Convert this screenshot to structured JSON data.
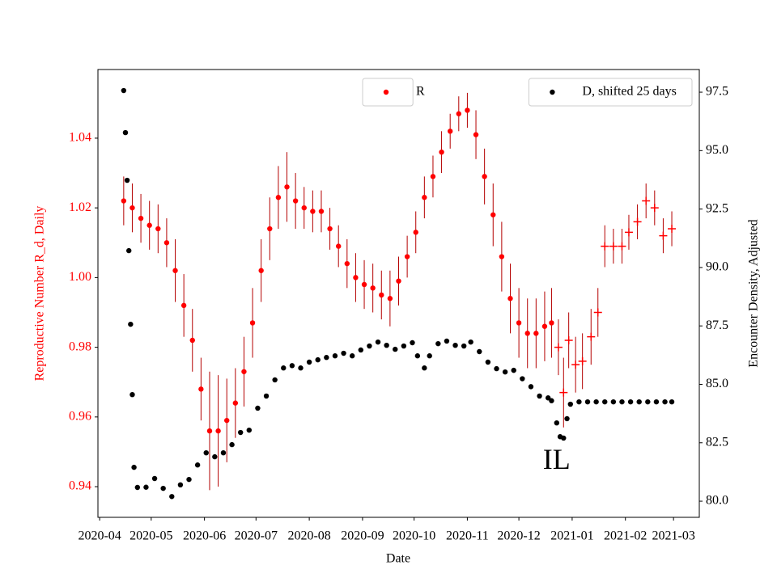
{
  "chart_data": {
    "type": "scatter",
    "x_label": "Date",
    "y_label": "Reproductive Number R_d, Daily",
    "y2_label": "Encounter Density, Adjusted",
    "xlim": [
      "2020-03-31",
      "2021-03-16"
    ],
    "xticks": [
      {
        "value": "2020-04-01",
        "label": "2020-04"
      },
      {
        "value": "2020-05-01",
        "label": "2020-05"
      },
      {
        "value": "2020-06-01",
        "label": "2020-06"
      },
      {
        "value": "2020-07-01",
        "label": "2020-07"
      },
      {
        "value": "2020-08-01",
        "label": "2020-08"
      },
      {
        "value": "2020-09-01",
        "label": "2020-09"
      },
      {
        "value": "2020-10-01",
        "label": "2020-10"
      },
      {
        "value": "2020-11-01",
        "label": "2020-11"
      },
      {
        "value": "2020-12-01",
        "label": "2020-12"
      },
      {
        "value": "2021-01-01",
        "label": "2021-01"
      },
      {
        "value": "2021-02-01",
        "label": "2021-02"
      },
      {
        "value": "2021-03-01",
        "label": "2021-03"
      }
    ],
    "ylim": [
      0.9312,
      1.0597
    ],
    "yticks": [
      0.94,
      0.96,
      0.98,
      {
        "value": 1,
        "label": "1.00"
      },
      1.02,
      1.04
    ],
    "y_color": "#ff0000",
    "y2lim": [
      79.31,
      98.47
    ],
    "y2ticks": [
      {
        "value": 80,
        "label": "80.0"
      },
      82.5,
      {
        "value": 85,
        "label": "85.0"
      },
      87.5,
      {
        "value": 90,
        "label": "90.0"
      },
      92.5,
      {
        "value": 95,
        "label": "95.0"
      },
      97.5
    ],
    "annotations": [
      {
        "text": "IL",
        "x": "2020-12-23",
        "y": 0.947
      }
    ],
    "series": [
      {
        "name": "R",
        "color": "#ff0000",
        "error_color": "#b40000",
        "marker": "o",
        "legend": "upper center",
        "x": [
          "2020-04-15",
          "2020-04-20",
          "2020-04-25",
          "2020-04-30",
          "2020-05-05",
          "2020-05-10",
          "2020-05-15",
          "2020-05-20",
          "2020-05-25",
          "2020-05-30",
          "2020-06-04",
          "2020-06-09",
          "2020-06-14",
          "2020-06-19",
          "2020-06-24",
          "2020-06-29",
          "2020-07-04",
          "2020-07-09",
          "2020-07-14",
          "2020-07-19",
          "2020-07-24",
          "2020-07-29",
          "2020-08-03",
          "2020-08-08",
          "2020-08-13",
          "2020-08-18",
          "2020-08-23",
          "2020-08-28",
          "2020-09-02",
          "2020-09-07",
          "2020-09-12",
          "2020-09-17",
          "2020-09-22",
          "2020-09-27",
          "2020-10-02",
          "2020-10-07",
          "2020-10-12",
          "2020-10-17",
          "2020-10-22",
          "2020-10-27",
          "2020-11-01",
          "2020-11-06",
          "2020-11-11",
          "2020-11-16",
          "2020-11-21",
          "2020-11-26",
          "2020-12-01",
          "2020-12-06",
          "2020-12-11",
          "2020-12-16",
          "2020-12-20"
        ],
        "values": [
          1.022,
          1.02,
          1.017,
          1.015,
          1.014,
          1.01,
          1.002,
          0.992,
          0.982,
          0.968,
          0.956,
          0.956,
          0.959,
          0.964,
          0.973,
          0.987,
          1.002,
          1.014,
          1.023,
          1.026,
          1.022,
          1.02,
          1.019,
          1.019,
          1.014,
          1.009,
          1.004,
          1.0,
          0.998,
          0.997,
          0.995,
          0.994,
          0.999,
          1.006,
          1.013,
          1.023,
          1.029,
          1.036,
          1.042,
          1.047,
          1.048,
          1.041,
          1.029,
          1.018,
          1.006,
          0.994,
          0.987,
          0.984,
          0.984,
          0.986,
          0.987
        ],
        "errors": [
          0.007,
          0.007,
          0.007,
          0.007,
          0.007,
          0.007,
          0.009,
          0.009,
          0.009,
          0.009,
          0.017,
          0.016,
          0.012,
          0.01,
          0.01,
          0.01,
          0.009,
          0.009,
          0.009,
          0.01,
          0.008,
          0.006,
          0.006,
          0.006,
          0.006,
          0.006,
          0.007,
          0.007,
          0.007,
          0.007,
          0.007,
          0.008,
          0.007,
          0.006,
          0.006,
          0.006,
          0.006,
          0.006,
          0.005,
          0.005,
          0.005,
          0.007,
          0.008,
          0.009,
          0.01,
          0.01,
          0.01,
          0.01,
          0.01,
          0.01,
          0.01
        ]
      },
      {
        "color": "#ff0000",
        "error_color": "#b40000",
        "marker": "+",
        "x": [
          "2020-12-24",
          "2020-12-27",
          "2020-12-30",
          "2021-01-03",
          "2021-01-07",
          "2021-01-12",
          "2021-01-16",
          "2021-01-20",
          "2021-01-25",
          "2021-01-30",
          "2021-02-03",
          "2021-02-08",
          "2021-02-13",
          "2021-02-18",
          "2021-02-23",
          "2021-02-28"
        ],
        "values": [
          0.98,
          0.967,
          0.982,
          0.975,
          0.976,
          0.983,
          0.99,
          1.009,
          1.009,
          1.009,
          1.013,
          1.016,
          1.022,
          1.02,
          1.012,
          1.014
        ],
        "errors": [
          0.008,
          0.01,
          0.008,
          0.008,
          0.008,
          0.008,
          0.007,
          0.006,
          0.005,
          0.005,
          0.005,
          0.005,
          0.005,
          0.005,
          0.005,
          0.005
        ]
      },
      {
        "name": "D, shifted 25 days",
        "color": "#000000",
        "marker": "o",
        "axis": "y2",
        "legend": "upper right",
        "x": [
          "2020-04-15",
          "2020-04-16",
          "2020-04-17",
          "2020-04-18",
          "2020-04-19",
          "2020-04-20",
          "2020-04-21",
          "2020-04-23",
          "2020-04-28",
          "2020-05-03",
          "2020-05-08",
          "2020-05-13",
          "2020-05-18",
          "2020-05-23",
          "2020-05-28",
          "2020-06-02",
          "2020-06-07",
          "2020-06-12",
          "2020-06-17",
          "2020-06-22",
          "2020-06-27",
          "2020-07-02",
          "2020-07-07",
          "2020-07-12",
          "2020-07-17",
          "2020-07-22",
          "2020-07-27",
          "2020-08-01",
          "2020-08-06",
          "2020-08-11",
          "2020-08-16",
          "2020-08-21",
          "2020-08-26",
          "2020-08-31",
          "2020-09-05",
          "2020-09-10",
          "2020-09-15",
          "2020-09-20",
          "2020-09-25",
          "2020-09-30",
          "2020-10-03",
          "2020-10-07",
          "2020-10-10",
          "2020-10-15",
          "2020-10-20",
          "2020-10-25",
          "2020-10-30",
          "2020-11-03",
          "2020-11-08",
          "2020-11-13",
          "2020-11-18",
          "2020-11-23",
          "2020-11-28",
          "2020-12-03",
          "2020-12-08",
          "2020-12-13",
          "2020-12-18",
          "2020-12-20",
          "2020-12-23",
          "2020-12-25",
          "2020-12-27",
          "2020-12-29",
          "2020-12-31",
          "2021-01-05",
          "2021-01-10",
          "2021-01-15",
          "2021-01-20",
          "2021-01-25",
          "2021-01-30",
          "2021-02-04",
          "2021-02-09",
          "2021-02-14",
          "2021-02-19",
          "2021-02-24",
          "2021-02-28"
        ],
        "values": [
          97.57,
          95.77,
          93.73,
          90.72,
          87.57,
          84.56,
          81.45,
          80.59,
          80.6,
          80.97,
          80.55,
          80.2,
          80.7,
          80.93,
          81.55,
          82.07,
          81.9,
          82.07,
          82.42,
          82.94,
          83.04,
          83.98,
          84.5,
          85.19,
          85.7,
          85.8,
          85.7,
          85.95,
          86.05,
          86.15,
          86.22,
          86.33,
          86.22,
          86.47,
          86.64,
          86.81,
          86.67,
          86.5,
          86.64,
          86.78,
          86.22,
          85.7,
          86.22,
          86.74,
          86.85,
          86.67,
          86.64,
          86.81,
          86.4,
          85.95,
          85.67,
          85.53,
          85.6,
          85.24,
          84.9,
          84.5,
          84.42,
          84.3,
          83.35,
          82.76,
          82.7,
          83.53,
          84.15,
          84.25,
          84.25,
          84.25,
          84.25,
          84.25,
          84.25,
          84.25,
          84.25,
          84.25,
          84.25,
          84.25,
          84.25
        ]
      }
    ]
  }
}
